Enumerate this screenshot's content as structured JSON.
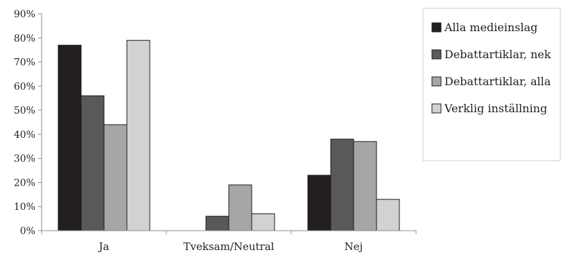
{
  "chart_data": {
    "type": "bar",
    "categories": [
      "Ja",
      "Tveksam/Neutral",
      "Nej"
    ],
    "series": [
      {
        "name": "Alla medieinslag",
        "values": [
          77,
          0,
          23
        ],
        "color": "#231f20"
      },
      {
        "name": "Debattartiklar, nek",
        "values": [
          56,
          6,
          38
        ],
        "color": "#595959"
      },
      {
        "name": "Debattartiklar, alla",
        "values": [
          44,
          19,
          37
        ],
        "color": "#a6a6a8"
      },
      {
        "name": "Verklig inställning",
        "values": [
          79,
          7,
          13
        ],
        "color": "#d2d2d3"
      }
    ],
    "ylim": [
      0,
      90
    ],
    "yticks": [
      0,
      10,
      20,
      30,
      40,
      50,
      60,
      70,
      80,
      90
    ],
    "ytick_suffix": "%",
    "title": "",
    "xlabel": "",
    "ylabel": "",
    "grid": false,
    "legend": "right"
  }
}
